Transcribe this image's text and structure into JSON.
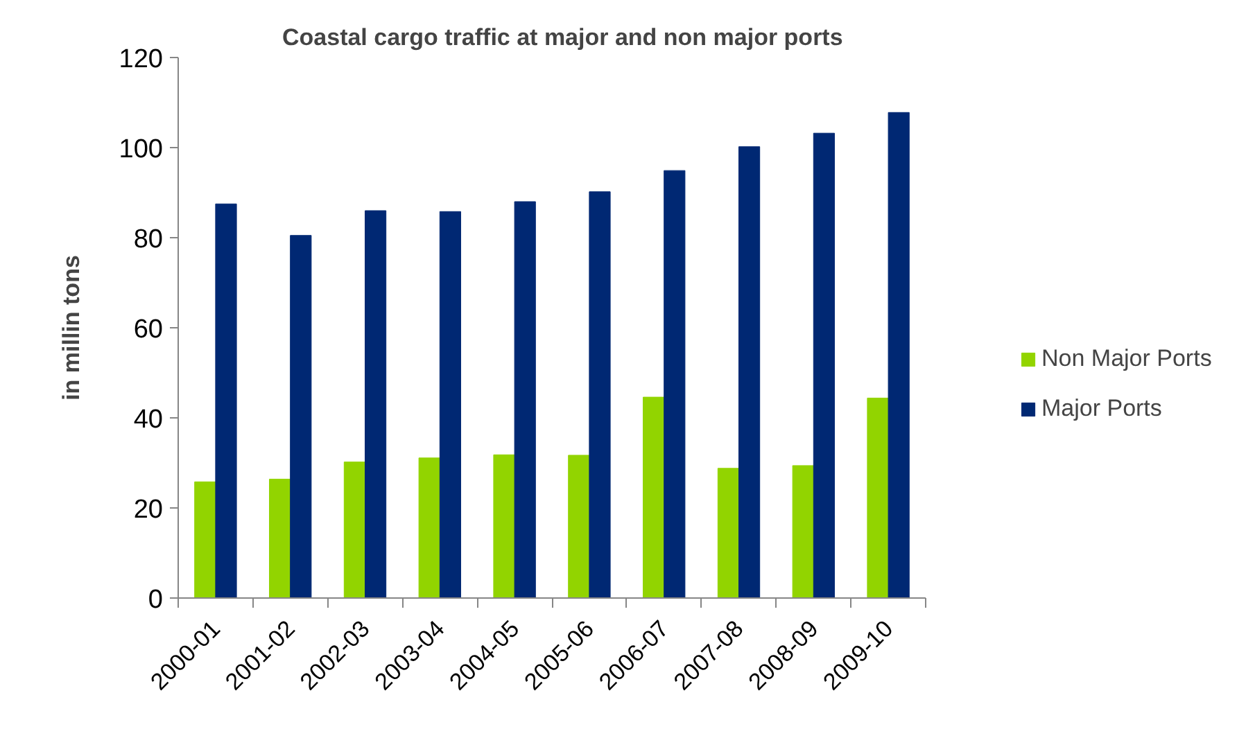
{
  "chart_data": {
    "type": "bar",
    "title": "Coastal cargo traffic at major and non major ports",
    "ylabel": "in millin tons",
    "categories": [
      "2000-01",
      "2001-02",
      "2002-03",
      "2003-04",
      "2004-05",
      "2005-06",
      "2006-07",
      "2007-08",
      "2008-09",
      "2009-10"
    ],
    "series": [
      {
        "name": "Non Major Ports",
        "color": "#92d400",
        "values": [
          25.8,
          26.4,
          30.2,
          31.1,
          31.8,
          31.7,
          44.6,
          28.8,
          29.4,
          44.4
        ]
      },
      {
        "name": "Major Ports",
        "color": "#002873",
        "values": [
          87.5,
          80.5,
          86.0,
          85.8,
          88.0,
          90.2,
          94.9,
          100.2,
          103.2,
          107.8
        ]
      }
    ],
    "ylim": [
      0,
      120
    ],
    "yticks": [
      0,
      20,
      40,
      60,
      80,
      100,
      120
    ],
    "grid": false,
    "legend": "right"
  }
}
